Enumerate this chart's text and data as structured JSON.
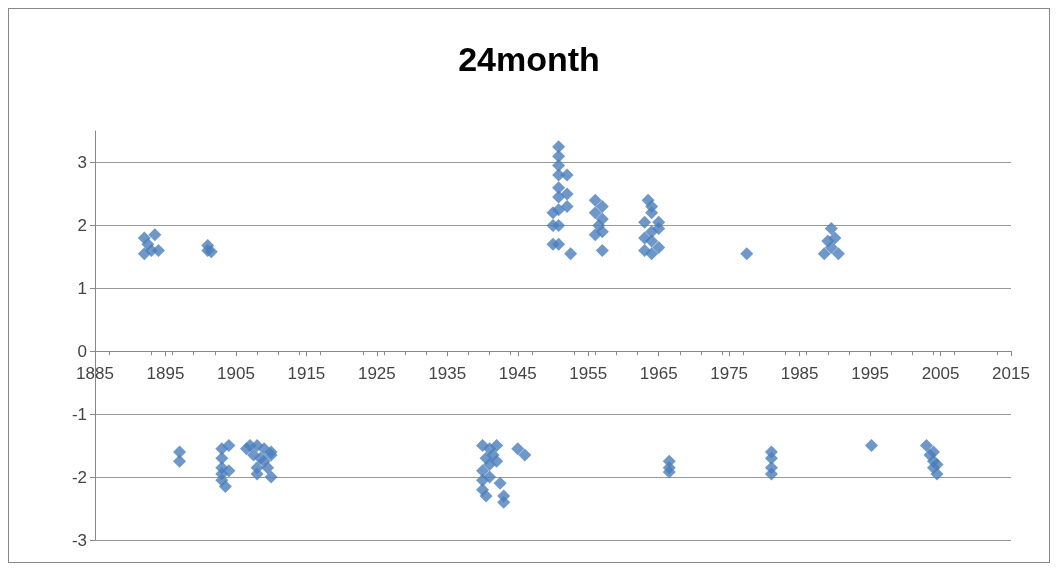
{
  "chart_data": {
    "type": "scatter",
    "title": "24month",
    "marker": "diamond",
    "grid": "y",
    "xlim": [
      1885,
      2015
    ],
    "xticks": [
      1885,
      1895,
      1905,
      1915,
      1925,
      1935,
      1945,
      1955,
      1965,
      1975,
      1985,
      1995,
      2005,
      2015
    ],
    "ylim": [
      -3,
      3.5
    ],
    "yticks": [
      -3,
      -2,
      -1,
      0,
      1,
      2,
      3
    ],
    "series": [
      {
        "color": "#4a7ebb",
        "x": [
          1892,
          1892,
          1893,
          1893.5,
          1894,
          1892.5,
          1901,
          1901,
          1901.5,
          1950.8,
          1950.8,
          1950.8,
          1950.8,
          1950.8,
          1950.8,
          1950.8,
          1950.8,
          1950.8,
          1950,
          1950,
          1950,
          1952,
          1952,
          1952,
          1952.5,
          1956,
          1956,
          1956.5,
          1956,
          1957,
          1957,
          1957,
          1957,
          1963.5,
          1964,
          1964,
          1963,
          1965,
          1964,
          1965,
          1963,
          1964,
          1963,
          1964,
          1965,
          1977.5,
          1989.5,
          1989,
          1990,
          1988.5,
          1990.5,
          1989.5,
          1897,
          1897,
          1903,
          1904,
          1903,
          1903,
          1903,
          1903,
          1903.5,
          1904,
          1906.5,
          1907,
          1908,
          1909,
          1910,
          1907.5,
          1908.5,
          1909,
          1908,
          1908,
          1910,
          1910,
          1909.5,
          1940,
          1941,
          1942,
          1940.5,
          1941,
          1940,
          1942,
          1940,
          1941,
          1940,
          1940.5,
          1942.5,
          1943,
          1943,
          1941.5,
          1945,
          1946,
          1966.5,
          1966.5,
          1966.5,
          1981,
          1981,
          1981,
          1981,
          1995.2,
          2003,
          2004,
          2003.5,
          2004,
          2004,
          2004.5,
          2004.5
        ],
        "values": [
          1.55,
          1.8,
          1.6,
          1.85,
          1.6,
          1.7,
          1.6,
          1.68,
          1.58,
          3.25,
          3.1,
          2.95,
          2.8,
          2.6,
          2.45,
          2.25,
          2.0,
          1.7,
          2.2,
          2.0,
          1.7,
          2.5,
          2.3,
          2.8,
          1.55,
          2.4,
          2.2,
          2.0,
          1.85,
          2.3,
          2.1,
          1.9,
          1.6,
          2.4,
          2.3,
          2.2,
          2.05,
          2.05,
          1.9,
          1.95,
          1.8,
          1.75,
          1.6,
          1.55,
          1.65,
          1.55,
          1.95,
          1.75,
          1.8,
          1.55,
          1.55,
          1.65,
          -1.6,
          -1.75,
          -1.55,
          -1.5,
          -1.7,
          -1.85,
          -1.95,
          -2.05,
          -2.15,
          -1.9,
          -1.55,
          -1.5,
          -1.5,
          -1.55,
          -1.6,
          -1.65,
          -1.7,
          -1.75,
          -1.85,
          -1.95,
          -1.65,
          -2.0,
          -1.85,
          -1.5,
          -1.55,
          -1.5,
          -1.7,
          -1.8,
          -1.9,
          -1.75,
          -2.05,
          -2.0,
          -2.2,
          -2.3,
          -2.1,
          -2.3,
          -2.4,
          -1.65,
          -1.55,
          -1.65,
          -1.75,
          -1.85,
          -1.92,
          -1.6,
          -1.7,
          -1.85,
          -1.95,
          -1.5,
          -1.5,
          -1.6,
          -1.65,
          -1.75,
          -1.85,
          -1.95,
          -1.8
        ]
      }
    ]
  }
}
